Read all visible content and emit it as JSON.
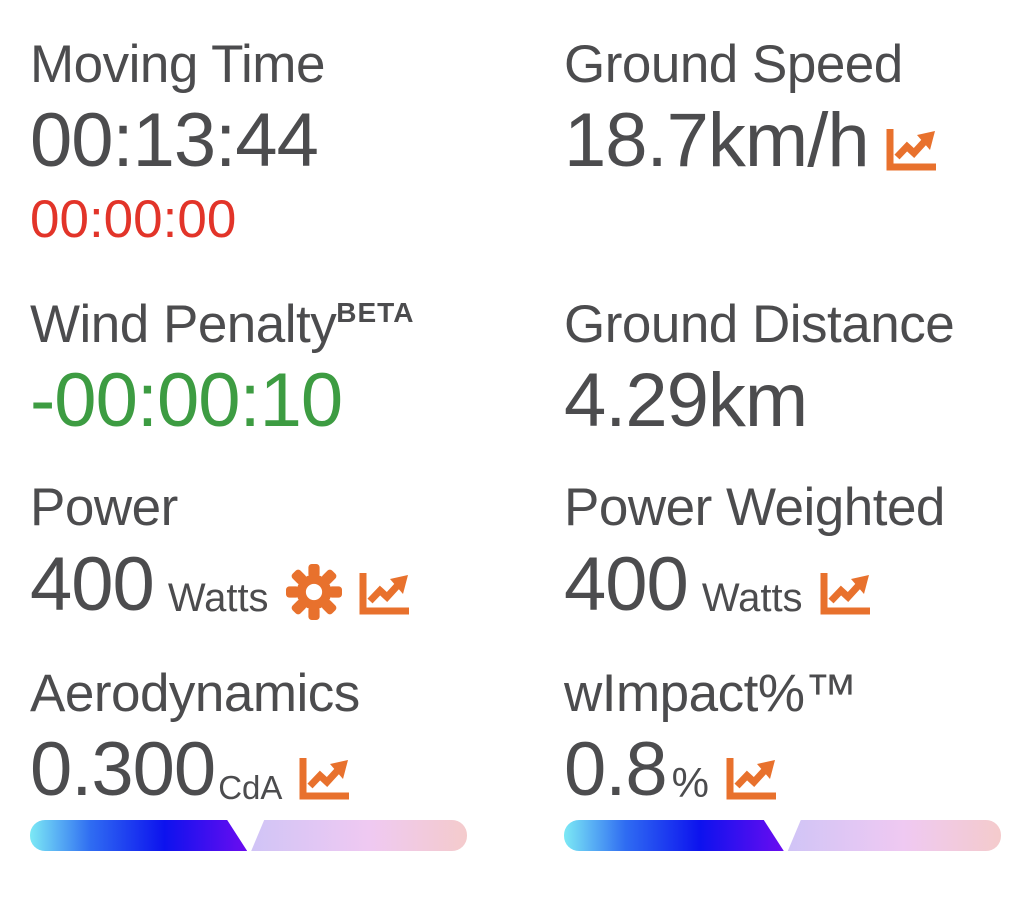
{
  "metrics": {
    "moving_time": {
      "label": "Moving Time",
      "value": "00:13:44",
      "sub_value": "00:00:00"
    },
    "ground_speed": {
      "label": "Ground Speed",
      "value": "18.7km/h",
      "icons": [
        "chart-line"
      ]
    },
    "wind_penalty": {
      "label": "Wind Penalty",
      "beta_tag": "BETA",
      "value": "-00:00:10"
    },
    "ground_distance": {
      "label": "Ground Distance",
      "value": "4.29km"
    },
    "power": {
      "label": "Power",
      "value": "400",
      "unit": "Watts",
      "icons": [
        "gear",
        "chart-line"
      ]
    },
    "power_weighted": {
      "label": "Power Weighted",
      "value": "400",
      "unit": "Watts",
      "icons": [
        "chart-line"
      ]
    },
    "aerodynamics": {
      "label": "Aerodynamics",
      "value": "0.300",
      "unit": "CdA",
      "icons": [
        "chart-line"
      ],
      "gauge_left_percent": 49.7
    },
    "wimpact": {
      "label": "wImpact%™",
      "value": "0.8",
      "unit": "%",
      "icons": [
        "chart-line"
      ],
      "gauge_left_percent": 50.3
    }
  },
  "colors": {
    "text": "#4c4c4e",
    "negative_red": "#e23429",
    "positive_green": "#3d9c42",
    "accent_orange": "#e8712d",
    "gauge_cyan": "#7ce9f5",
    "gauge_blue": "#2f6cf2",
    "gauge_deep_blue": "#0d12ee",
    "gauge_violet": "#6b0cf0",
    "gauge_lavender": "#cfc4f6",
    "gauge_pink": "#efc9f2",
    "gauge_salmon": "#f4cbcc"
  }
}
